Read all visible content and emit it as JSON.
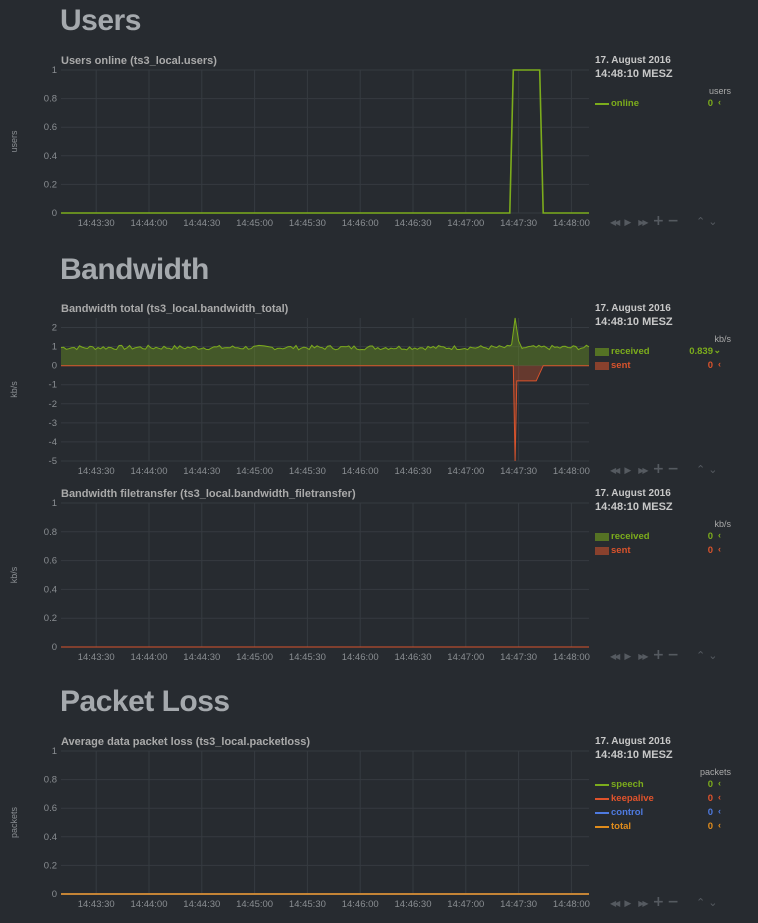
{
  "sections": {
    "users": "Users",
    "bandwidth": "Bandwidth",
    "packetloss": "Packet Loss"
  },
  "x_ticks": [
    "14:43:30",
    "14:44:00",
    "14:44:30",
    "14:45:00",
    "14:45:30",
    "14:46:00",
    "14:46:30",
    "14:47:00",
    "14:47:30",
    "14:48:00"
  ],
  "colors": {
    "received": "#7cac1c",
    "sent": "#d9532c",
    "online": "#7cac1c",
    "speech": "#7cac1c",
    "keepalive": "#e0532c",
    "control": "#4e7ae0",
    "total": "#e08c1c"
  },
  "toolbar_icons": [
    "rewind-icon",
    "play-icon",
    "fast-forward-icon",
    "zoom-in-icon",
    "zoom-out-icon",
    "resize-icon"
  ],
  "charts": {
    "users": {
      "title": "Users online (ts3_local.users)",
      "ylabel": "users",
      "date": "17. August 2016",
      "time": "14:48:10 MESZ",
      "units": "users",
      "legend": [
        {
          "name": "online",
          "value": "0",
          "color_key": "online"
        }
      ]
    },
    "bandwidth_total": {
      "title": "Bandwidth total (ts3_local.bandwidth_total)",
      "ylabel": "kb/s",
      "date": "17. August 2016",
      "time": "14:48:10 MESZ",
      "units": "kb/s",
      "legend": [
        {
          "name": "received",
          "value": "0.839",
          "color_key": "received"
        },
        {
          "name": "sent",
          "value": "0",
          "color_key": "sent"
        }
      ]
    },
    "bandwidth_filetransfer": {
      "title": "Bandwidth filetransfer (ts3_local.bandwidth_filetransfer)",
      "ylabel": "kb/s",
      "date": "17. August 2016",
      "time": "14:48:10 MESZ",
      "units": "kb/s",
      "legend": [
        {
          "name": "received",
          "value": "0",
          "color_key": "received"
        },
        {
          "name": "sent",
          "value": "0",
          "color_key": "sent"
        }
      ]
    },
    "packetloss": {
      "title": "Average data packet loss (ts3_local.packetloss)",
      "ylabel": "packets",
      "date": "17. August 2016",
      "time": "14:48:10 MESZ",
      "units": "packets",
      "legend": [
        {
          "name": "speech",
          "value": "0",
          "color_key": "speech"
        },
        {
          "name": "keepalive",
          "value": "0",
          "color_key": "keepalive"
        },
        {
          "name": "control",
          "value": "0",
          "color_key": "control"
        },
        {
          "name": "total",
          "value": "0",
          "color_key": "total"
        }
      ]
    }
  },
  "chart_data": [
    {
      "type": "line",
      "title": "Users online (ts3_local.users)",
      "ylabel": "users",
      "ylim": [
        0,
        1
      ],
      "y_ticks": [
        "0",
        "0.2",
        "0.4",
        "0.6",
        "0.8",
        "1"
      ],
      "x_range": [
        "14:43:10",
        "14:48:10"
      ],
      "series": [
        {
          "name": "online",
          "points": [
            [
              "14:43:10",
              0
            ],
            [
              "14:47:25",
              0
            ],
            [
              "14:47:27",
              1
            ],
            [
              "14:47:42",
              1
            ],
            [
              "14:47:44",
              0
            ],
            [
              "14:48:10",
              0
            ]
          ]
        }
      ]
    },
    {
      "type": "area",
      "title": "Bandwidth total (ts3_local.bandwidth_total)",
      "ylabel": "kb/s",
      "ylim": [
        -5,
        2.5
      ],
      "y_ticks": [
        "2",
        "1",
        "0",
        "-1",
        "-2",
        "-3",
        "-4",
        "-5"
      ],
      "x_range": [
        "14:43:10",
        "14:48:10"
      ],
      "series": [
        {
          "name": "received",
          "baseline": 0.95,
          "jitter": 0.12,
          "points": [
            [
              "14:47:26",
              1.1
            ],
            [
              "14:47:28",
              2.5
            ],
            [
              "14:47:30",
              1.3
            ],
            [
              "14:47:32",
              0.9
            ]
          ]
        },
        {
          "name": "sent",
          "points": [
            [
              "14:43:10",
              0
            ],
            [
              "14:47:27",
              0
            ],
            [
              "14:47:28",
              -5
            ],
            [
              "14:47:29",
              -0.8
            ],
            [
              "14:47:40",
              -0.8
            ],
            [
              "14:47:44",
              0
            ],
            [
              "14:48:10",
              0
            ]
          ]
        }
      ]
    },
    {
      "type": "area",
      "title": "Bandwidth filetransfer (ts3_local.bandwidth_filetransfer)",
      "ylabel": "kb/s",
      "ylim": [
        0,
        1
      ],
      "y_ticks": [
        "0",
        "0.2",
        "0.4",
        "0.6",
        "0.8",
        "1"
      ],
      "x_range": [
        "14:43:10",
        "14:48:10"
      ],
      "series": [
        {
          "name": "received",
          "points": [
            [
              "14:43:10",
              0
            ],
            [
              "14:48:10",
              0
            ]
          ]
        },
        {
          "name": "sent",
          "points": [
            [
              "14:43:10",
              0
            ],
            [
              "14:48:10",
              0
            ]
          ]
        }
      ]
    },
    {
      "type": "line",
      "title": "Average data packet loss (ts3_local.packetloss)",
      "ylabel": "packets",
      "ylim": [
        0,
        1
      ],
      "y_ticks": [
        "0",
        "0.2",
        "0.4",
        "0.6",
        "0.8",
        "1"
      ],
      "x_range": [
        "14:43:10",
        "14:48:10"
      ],
      "series": [
        {
          "name": "speech",
          "points": [
            [
              "14:43:10",
              0
            ],
            [
              "14:48:10",
              0
            ]
          ]
        },
        {
          "name": "keepalive",
          "points": [
            [
              "14:43:10",
              0
            ],
            [
              "14:48:10",
              0
            ]
          ]
        },
        {
          "name": "control",
          "points": [
            [
              "14:43:10",
              0
            ],
            [
              "14:48:10",
              0
            ]
          ]
        },
        {
          "name": "total",
          "points": [
            [
              "14:43:10",
              0
            ],
            [
              "14:48:10",
              0
            ]
          ]
        }
      ]
    }
  ]
}
